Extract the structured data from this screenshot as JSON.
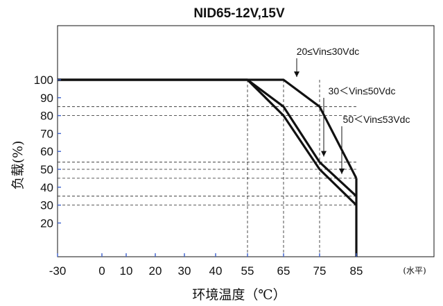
{
  "chart_data": {
    "type": "line",
    "title": "NID65-12V,15V",
    "xlabel": "环境温度（℃）",
    "xlabel_suffix": "(水平)",
    "ylabel": "负载(%)",
    "xlim": [
      -30,
      85
    ],
    "ylim": [
      0,
      115
    ],
    "x_ticks": [
      -30,
      0,
      10,
      20,
      30,
      40,
      55,
      65,
      75,
      85
    ],
    "y_ticks": [
      20,
      30,
      40,
      50,
      60,
      70,
      80,
      90,
      100
    ],
    "grid": false,
    "series": [
      {
        "name": "20≤Vin≤30Vdc",
        "x": [
          -30,
          55,
          65,
          75,
          85
        ],
        "y": [
          100,
          100,
          100,
          85,
          45
        ]
      },
      {
        "name": "30＜Vin≤50Vdc",
        "x": [
          -30,
          55,
          65,
          75,
          85
        ],
        "y": [
          100,
          100,
          85,
          54,
          35
        ]
      },
      {
        "name": "50＜Vin≤53Vdc",
        "x": [
          -30,
          55,
          65,
          75,
          85
        ],
        "y": [
          100,
          100,
          80,
          50,
          30
        ]
      }
    ],
    "reference_y": [
      85,
      80,
      54,
      50,
      45,
      35,
      30
    ],
    "reference_x": [
      55,
      65,
      75
    ],
    "cutoff_x": 85,
    "annotations": [
      {
        "text": "20≤Vin≤30Vdc",
        "x": 68,
        "y": 100
      },
      {
        "text": "30＜Vin≤50Vdc",
        "x": 76,
        "y": 54
      },
      {
        "text": "50＜Vin≤53Vdc",
        "x": 80,
        "y": 45
      }
    ],
    "colors": {
      "line": "#111111",
      "tick": "#3a5fcd",
      "reference": "#222222"
    }
  }
}
